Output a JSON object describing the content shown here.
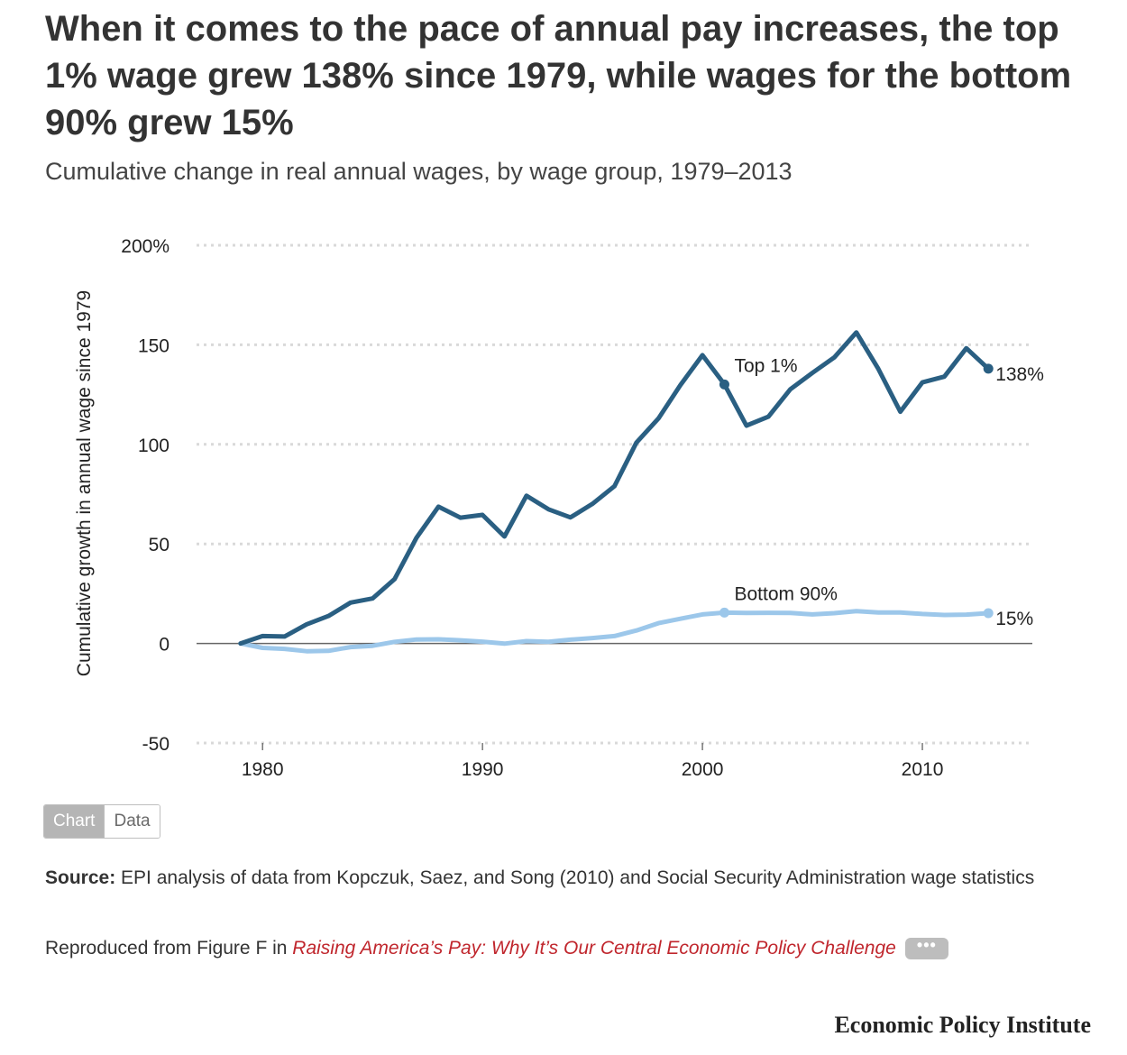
{
  "headline": "When it comes to the pace of annual pay increases, the top 1% wage grew 138% since 1979, while wages for the bottom 90% grew 15%",
  "subhead": "Cumulative change in real annual wages, by wage group, 1979–2013",
  "toggle": {
    "chart_label": "Chart",
    "data_label": "Data"
  },
  "source": {
    "label": "Source:",
    "text": " EPI analysis of data from Kopczuk, Saez, and Song (2010) and Social Security Administration wage statistics"
  },
  "reproduced": {
    "prefix": "Reproduced from Figure F in ",
    "link_text": "Raising America’s Pay: Why It’s Our Central Economic Policy Challenge",
    "more_label": "•••"
  },
  "logo": "Economic Policy Institute",
  "colors": {
    "top1": "#2a5f82",
    "bottom90": "#9cc7ea",
    "zero_line": "#666666",
    "grid": "#d9d9d9",
    "link": "#c0262d"
  },
  "chart_data": {
    "type": "line",
    "ylabel": "Cumulative growth in annual wage since 1979",
    "xlabel": "",
    "ylim": [
      -50,
      200
    ],
    "xlim": [
      1977,
      2015
    ],
    "y_ticks": [
      -50,
      0,
      50,
      100,
      150,
      200
    ],
    "y_tick_labels": [
      "-50",
      "0",
      "50",
      "100",
      "150",
      "200%"
    ],
    "x_ticks": [
      1980,
      1990,
      2000,
      2010
    ],
    "x_tick_labels": [
      "1980",
      "1990",
      "2000",
      "2010"
    ],
    "grid": true,
    "x": [
      1979,
      1980,
      1981,
      1982,
      1983,
      1984,
      1985,
      1986,
      1987,
      1988,
      1989,
      1990,
      1991,
      1992,
      1993,
      1994,
      1995,
      1996,
      1997,
      1998,
      1999,
      2000,
      2001,
      2002,
      2003,
      2004,
      2005,
      2006,
      2007,
      2008,
      2009,
      2010,
      2011,
      2012,
      2013
    ],
    "series": [
      {
        "name": "Top 1%",
        "color": "#2a5f82",
        "values": [
          0,
          3.7,
          3.5,
          9.6,
          13.8,
          20.5,
          22.6,
          32.3,
          53.1,
          68.7,
          63.2,
          64.6,
          53.7,
          74.2,
          67.4,
          63.3,
          70.1,
          79.0,
          100.9,
          113.0,
          129.8,
          144.8,
          130.1,
          109.4,
          113.9,
          127.7,
          135.9,
          143.7,
          156.2,
          137.9,
          116.4,
          131.1,
          134.0,
          148.3,
          138.0
        ],
        "label": "Top 1%",
        "label_year": 2001,
        "end_label": "138%"
      },
      {
        "name": "Bottom 90%",
        "color": "#9cc7ea",
        "values": [
          0,
          -2.2,
          -2.7,
          -3.9,
          -3.7,
          -1.8,
          -1.2,
          0.8,
          2.0,
          2.1,
          1.6,
          0.9,
          -0.1,
          1.2,
          0.8,
          1.9,
          2.7,
          3.7,
          6.5,
          10.2,
          12.4,
          14.6,
          15.5,
          15.3,
          15.4,
          15.3,
          14.6,
          15.2,
          16.2,
          15.6,
          15.6,
          14.8,
          14.3,
          14.5,
          15.2
        ],
        "label": "Bottom 90%",
        "label_year": 2001,
        "end_label": "15%"
      }
    ]
  }
}
